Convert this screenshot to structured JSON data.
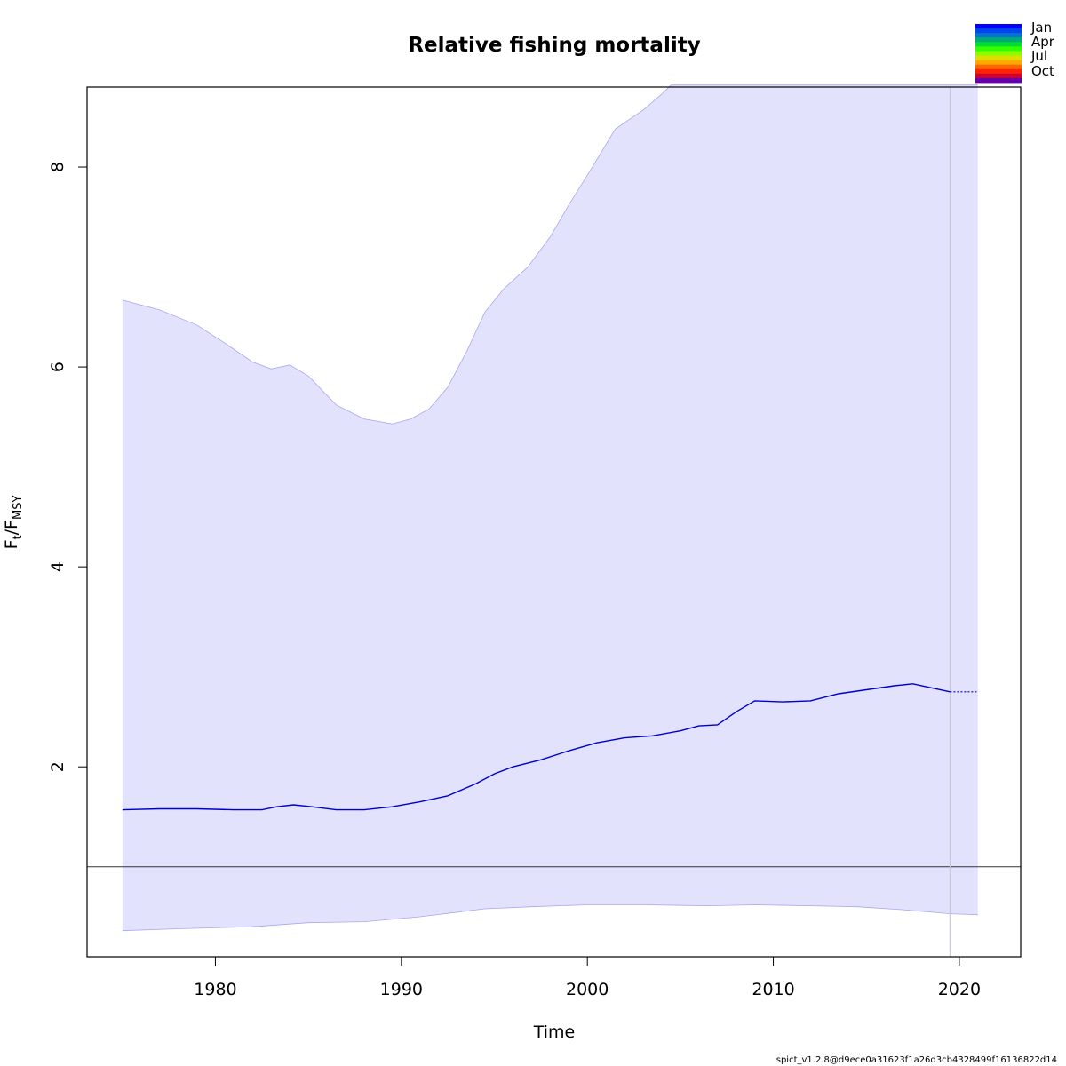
{
  "chart_data": {
    "type": "line",
    "title": "Relative fishing mortality",
    "xlabel": "Time",
    "ylabel_main": "F",
    "ylabel_sub_t": "t",
    "ylabel_slash": "/",
    "ylabel_sub_msy": "MSY",
    "xlim": [
      1973.1,
      2023.3
    ],
    "ylim": [
      0.1,
      8.8
    ],
    "x_ticks": [
      "1980",
      "1990",
      "2000",
      "2010",
      "2020"
    ],
    "y_ticks": [
      "2",
      "4",
      "6",
      "8"
    ],
    "reference_line_y": 1.0,
    "last_observation_x": 2019.5,
    "series": [
      {
        "name": "",
        "color": "#0000CD",
        "points": [
          [
            1975.0,
            1.57
          ],
          [
            1977.0,
            1.58
          ],
          [
            1979.0,
            1.58
          ],
          [
            1981.0,
            1.57
          ],
          [
            1982.5,
            1.57
          ],
          [
            1983.3,
            1.6
          ],
          [
            1984.2,
            1.62
          ],
          [
            1985.2,
            1.6
          ],
          [
            1986.5,
            1.57
          ],
          [
            1988.0,
            1.57
          ],
          [
            1989.5,
            1.6
          ],
          [
            1991.0,
            1.65
          ],
          [
            1992.5,
            1.71
          ],
          [
            1994.0,
            1.83
          ],
          [
            1995.0,
            1.93
          ],
          [
            1996.0,
            2.0
          ],
          [
            1997.5,
            2.07
          ],
          [
            1999.0,
            2.16
          ],
          [
            2000.5,
            2.24
          ],
          [
            2002.0,
            2.29
          ],
          [
            2003.5,
            2.31
          ],
          [
            2005.0,
            2.36
          ],
          [
            2006.0,
            2.41
          ],
          [
            2007.0,
            2.42
          ],
          [
            2008.0,
            2.55
          ],
          [
            2009.0,
            2.66
          ],
          [
            2010.5,
            2.65
          ],
          [
            2012.0,
            2.66
          ],
          [
            2013.5,
            2.73
          ],
          [
            2015.0,
            2.77
          ],
          [
            2016.5,
            2.81
          ],
          [
            2017.5,
            2.83
          ],
          [
            2018.5,
            2.79
          ],
          [
            2019.5,
            2.75
          ]
        ],
        "forecast": [
          [
            2019.5,
            2.75
          ],
          [
            2021.0,
            2.75
          ]
        ]
      }
    ],
    "ci_upper": [
      [
        1975.0,
        6.67
      ],
      [
        1977.0,
        6.57
      ],
      [
        1979.0,
        6.42
      ],
      [
        1980.5,
        6.24
      ],
      [
        1982.0,
        6.05
      ],
      [
        1983.0,
        5.98
      ],
      [
        1984.0,
        6.02
      ],
      [
        1985.0,
        5.91
      ],
      [
        1986.5,
        5.62
      ],
      [
        1988.0,
        5.48
      ],
      [
        1989.5,
        5.43
      ],
      [
        1990.5,
        5.48
      ],
      [
        1991.5,
        5.58
      ],
      [
        1992.5,
        5.8
      ],
      [
        1993.5,
        6.15
      ],
      [
        1994.5,
        6.55
      ],
      [
        1995.5,
        6.78
      ],
      [
        1996.8,
        7.0
      ],
      [
        1998.0,
        7.3
      ],
      [
        1999.0,
        7.62
      ],
      [
        2000.2,
        7.98
      ],
      [
        2001.5,
        8.38
      ],
      [
        2003.0,
        8.57
      ],
      [
        2004.0,
        8.73
      ],
      [
        2004.5,
        8.82
      ],
      [
        2021.0,
        8.82
      ]
    ],
    "ci_lower": [
      [
        2021.0,
        0.52
      ],
      [
        2019.5,
        0.53
      ],
      [
        2017.0,
        0.57
      ],
      [
        2014.5,
        0.6
      ],
      [
        2012.0,
        0.61
      ],
      [
        2009.0,
        0.62
      ],
      [
        2006.5,
        0.61
      ],
      [
        2003.0,
        0.62
      ],
      [
        2000.0,
        0.62
      ],
      [
        1997.0,
        0.6
      ],
      [
        1994.5,
        0.58
      ],
      [
        1991.0,
        0.5
      ],
      [
        1988.0,
        0.45
      ],
      [
        1985.0,
        0.44
      ],
      [
        1982.0,
        0.4
      ],
      [
        1978.0,
        0.38
      ],
      [
        1975.0,
        0.36
      ]
    ],
    "ci_fill_color": "#E2E2FC",
    "ci_edge_color": "#A8A8F0",
    "month_legend": {
      "labels": [
        "Jan",
        "Apr",
        "Jul",
        "Oct"
      ],
      "colors": [
        "#0000FF",
        "#0044EE",
        "#0077CC",
        "#00AA77",
        "#00DD33",
        "#33FF00",
        "#88FF00",
        "#DDDD00",
        "#FFAA00",
        "#FF6600",
        "#FF2200",
        "#CC0033",
        "#6600AA"
      ]
    },
    "footer": "spict_v1.2.8@d9ece0a31623f1a26d3cb4328499f16136822d14"
  }
}
